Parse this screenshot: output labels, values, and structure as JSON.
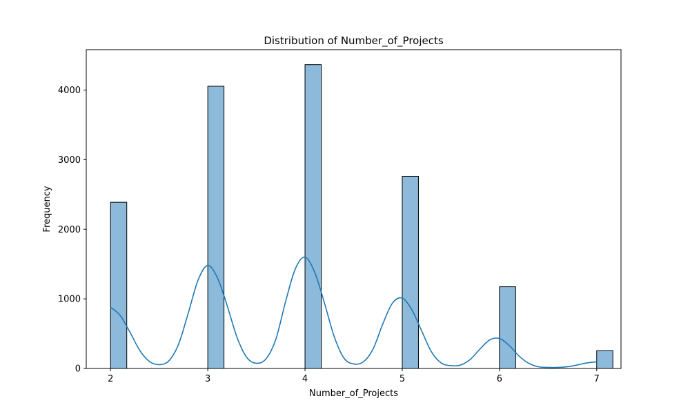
{
  "chart_data": {
    "type": "bar",
    "title": "Distribution of Number_of_Projects",
    "xlabel": "Number_of_Projects",
    "ylabel": "Frequency",
    "xlim": [
      1.75,
      7.25
    ],
    "ylim": [
      0,
      4580
    ],
    "x_ticks": [
      "2",
      "3",
      "4",
      "5",
      "6",
      "7"
    ],
    "y_ticks": [
      "0",
      "1000",
      "2000",
      "3000",
      "4000"
    ],
    "bin_width": 0.1667,
    "bars": [
      {
        "x": 2,
        "value": 2388
      },
      {
        "x": 3,
        "value": 4055
      },
      {
        "x": 4,
        "value": 4365
      },
      {
        "x": 5,
        "value": 2761
      },
      {
        "x": 6,
        "value": 1174
      },
      {
        "x": 7,
        "value": 256
      }
    ],
    "kde": {
      "x": [
        2.0,
        2.1,
        2.2,
        2.3,
        2.4,
        2.5,
        2.6,
        2.7,
        2.8,
        2.9,
        3.0,
        3.1,
        3.2,
        3.3,
        3.4,
        3.5,
        3.6,
        3.7,
        3.8,
        3.9,
        4.0,
        4.1,
        4.2,
        4.3,
        4.4,
        4.5,
        4.6,
        4.7,
        4.8,
        4.9,
        5.0,
        5.1,
        5.2,
        5.3,
        5.4,
        5.5,
        5.6,
        5.7,
        5.8,
        5.9,
        6.0,
        6.1,
        6.2,
        6.3,
        6.4,
        6.5,
        6.6,
        6.7,
        6.8,
        6.9,
        7.0
      ],
      "y": [
        880,
        760,
        520,
        260,
        100,
        55,
        110,
        350,
        800,
        1270,
        1480,
        1300,
        900,
        450,
        160,
        75,
        140,
        420,
        960,
        1430,
        1600,
        1380,
        940,
        460,
        150,
        65,
        95,
        280,
        640,
        940,
        1010,
        840,
        540,
        240,
        80,
        40,
        50,
        130,
        280,
        410,
        430,
        330,
        180,
        75,
        25,
        15,
        15,
        25,
        50,
        80,
        95
      ]
    },
    "colors": {
      "bar_fill": "#8dbadb",
      "bar_edge": "#000000",
      "kde_line": "#1f77b4"
    },
    "grid": false,
    "legend": "none"
  }
}
